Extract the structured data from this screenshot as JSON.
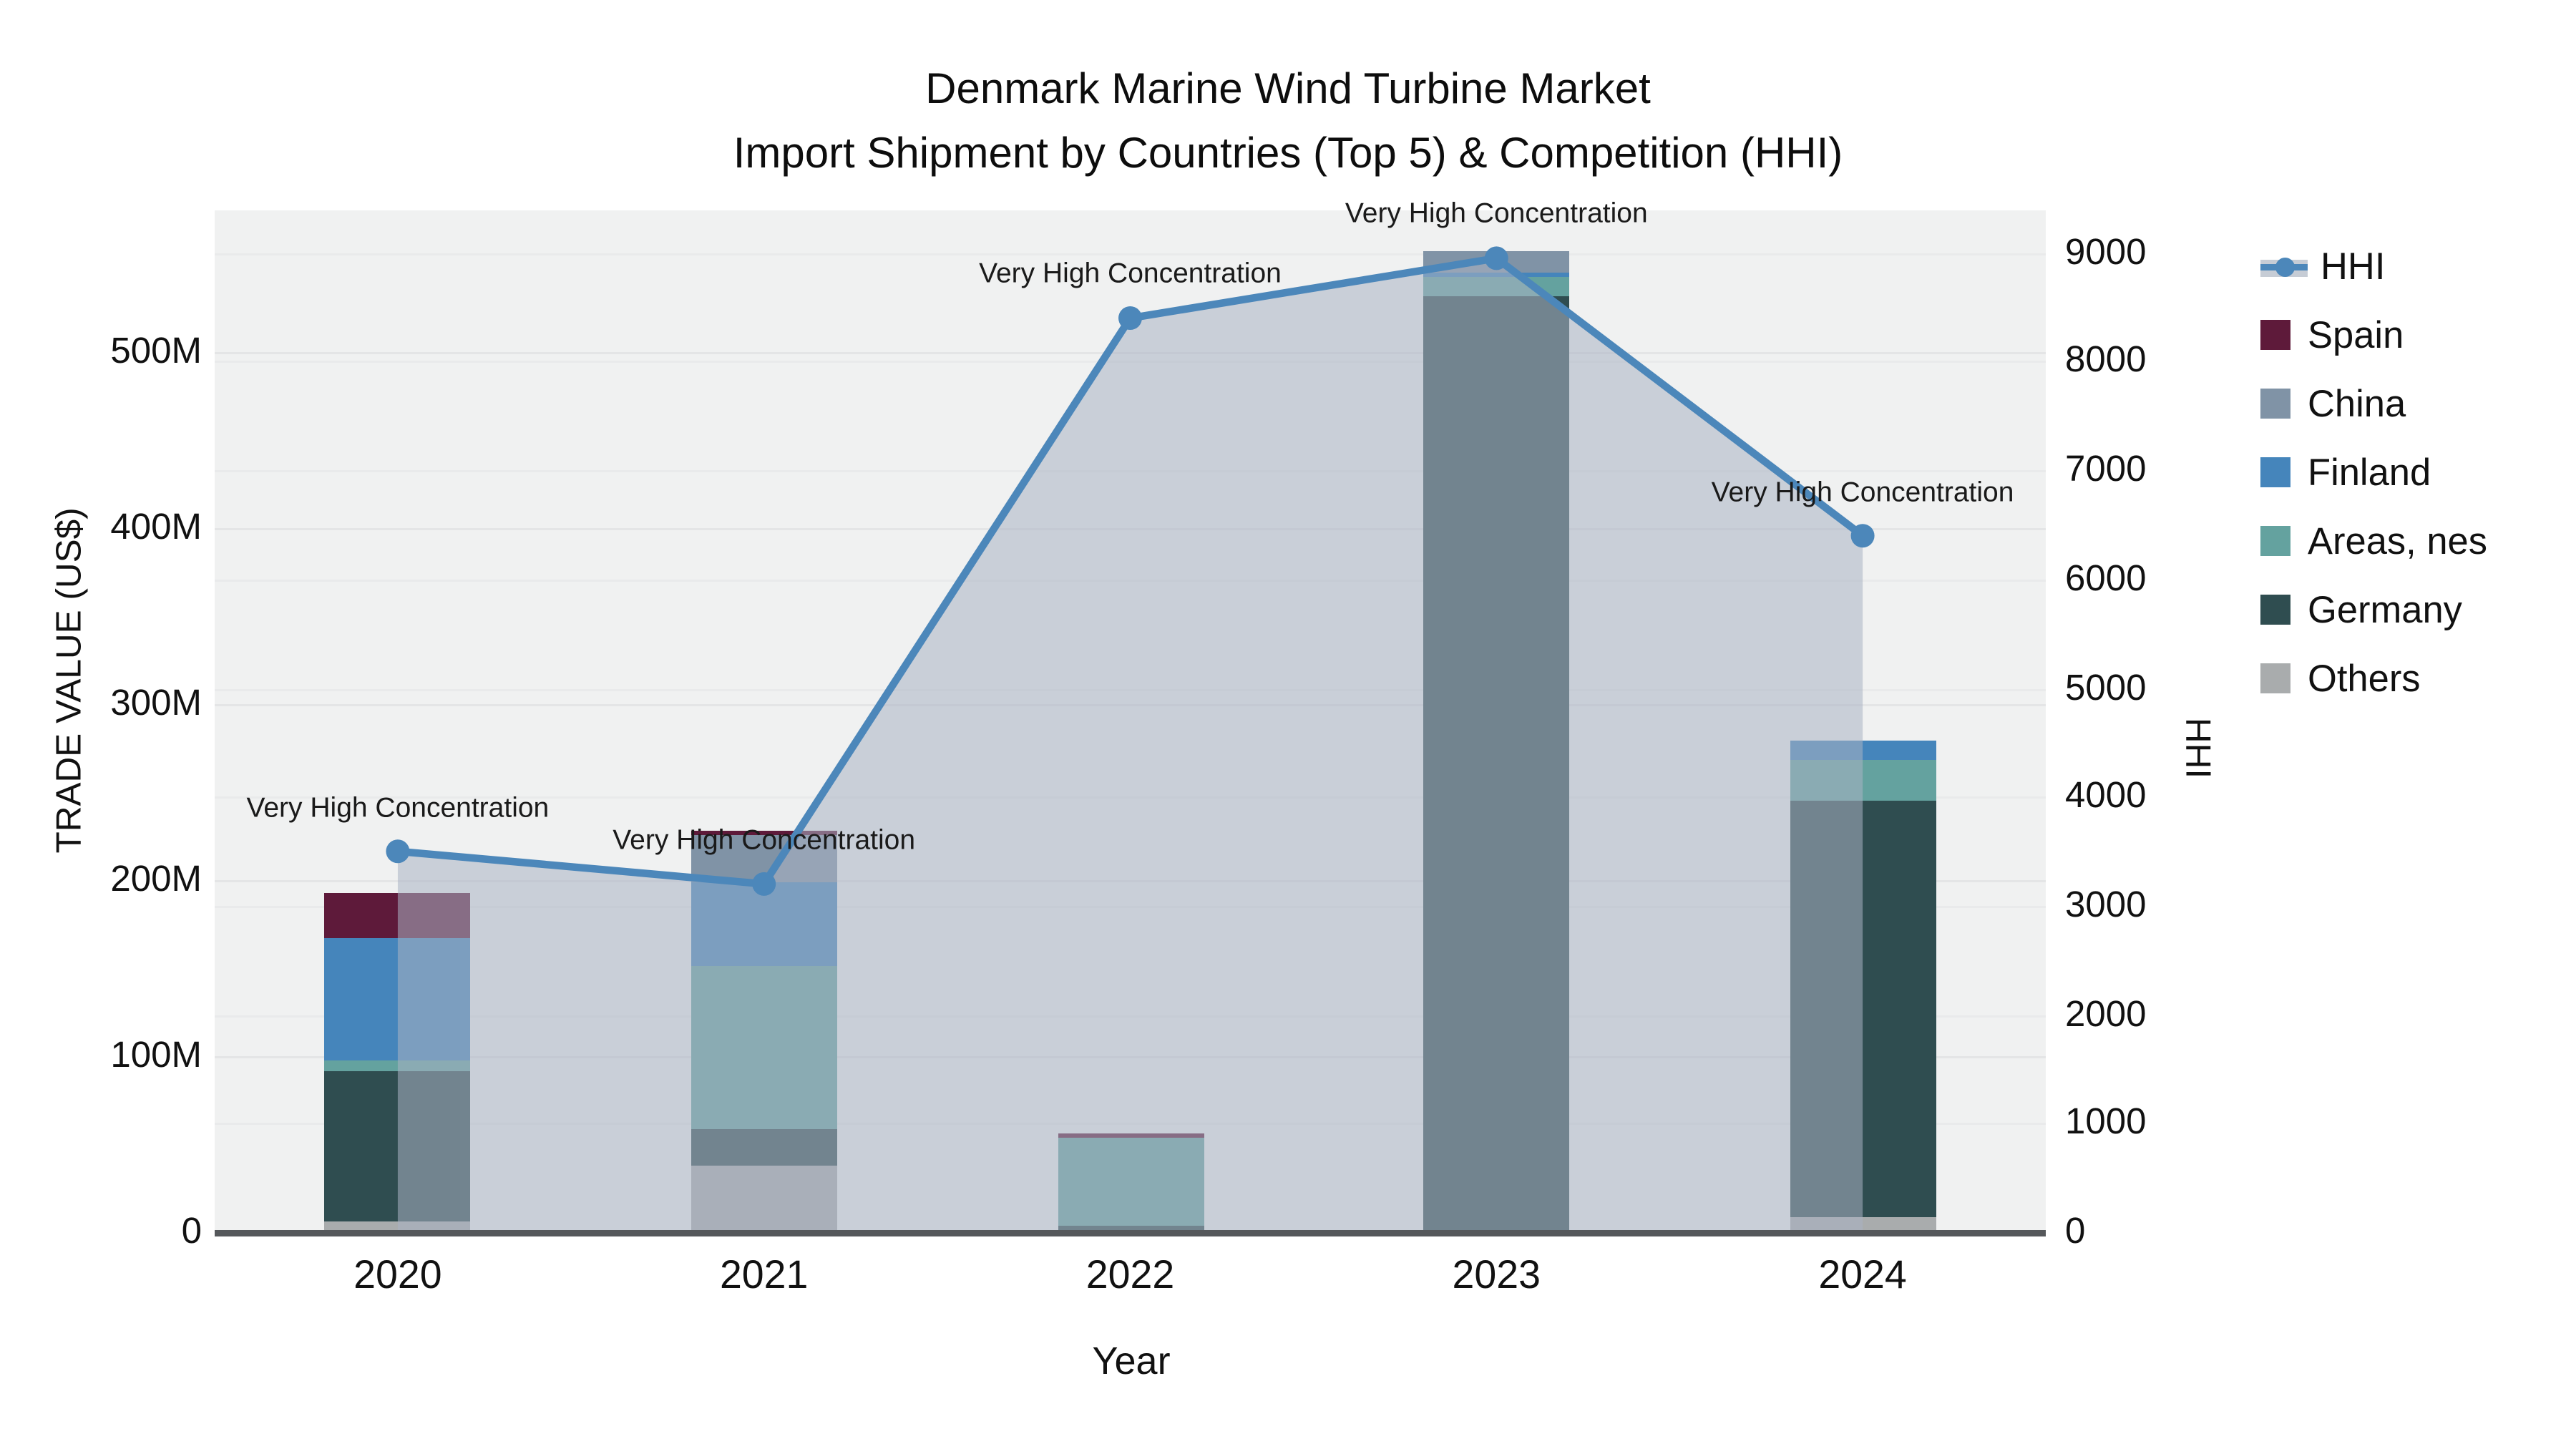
{
  "title": {
    "line1": "Denmark Marine Wind Turbine Market",
    "line2": "Import Shipment by Countries (Top 5) & Competition (HHI)"
  },
  "axes": {
    "left": {
      "label": "TRADE VALUE (US$)",
      "ticks": [
        "0",
        "100M",
        "200M",
        "300M",
        "400M",
        "500M"
      ]
    },
    "right": {
      "label": "HHI",
      "ticks": [
        "0",
        "1000",
        "2000",
        "3000",
        "4000",
        "5000",
        "6000",
        "7000",
        "8000",
        "9000"
      ]
    },
    "x": {
      "label": "Year"
    }
  },
  "legend": {
    "hhi_label": "HHI",
    "items": [
      "Spain",
      "China",
      "Finland",
      "Areas, nes",
      "Germany",
      "Others"
    ]
  },
  "chart_data": {
    "type": "bar+line",
    "categories": [
      "2020",
      "2021",
      "2022",
      "2023",
      "2024"
    ],
    "bar_unit": "million US$",
    "series": [
      {
        "name": "Spain",
        "color": "#5e1a3a",
        "values": [
          26,
          3,
          2,
          0,
          0
        ]
      },
      {
        "name": "China",
        "color": "#8093a6",
        "values": [
          0,
          26,
          0,
          12,
          0
        ]
      },
      {
        "name": "Finland",
        "color": "#4585bb",
        "values": [
          70,
          48,
          0,
          3,
          11
        ]
      },
      {
        "name": "Areas, nes",
        "color": "#64a29f",
        "values": [
          6,
          93,
          50,
          11,
          23
        ]
      },
      {
        "name": "Germany",
        "color": "#2f4d50",
        "values": [
          85,
          20,
          3,
          530,
          237
        ]
      },
      {
        "name": "Others",
        "color": "#a9acad",
        "values": [
          6,
          38,
          1,
          1,
          8
        ]
      }
    ],
    "stack_order_bottom_to_top": [
      "Others",
      "Germany",
      "Areas, nes",
      "Finland",
      "China",
      "Spain"
    ],
    "bar_totals": [
      193,
      228,
      56,
      557,
      279
    ],
    "line": {
      "name": "HHI",
      "axis": "right",
      "color": "#4c87ba",
      "fill": "rgba(169,179,195,0.55)",
      "values": [
        3500,
        3200,
        8400,
        8950,
        6400
      ]
    },
    "annotations": [
      "Very High Concentration",
      "Very High Concentration",
      "Very High Concentration",
      "Very High Concentration",
      "Very High Concentration"
    ],
    "title": "Denmark Marine Wind Turbine Market — Import Shipment by Countries (Top 5) & Competition (HHI)",
    "xlabel": "Year",
    "ylabel_left": "TRADE VALUE (US$)",
    "ylabel_right": "HHI",
    "ylim_left_musd": [
      0,
      580
    ],
    "ylim_right_hhi": [
      0,
      9390
    ],
    "left_tick_values_musd": [
      0,
      100,
      200,
      300,
      400,
      500
    ],
    "right_tick_values": [
      0,
      1000,
      2000,
      3000,
      4000,
      5000,
      6000,
      7000,
      8000,
      9000
    ],
    "grid": true,
    "legend_position": "right"
  },
  "colors": {
    "plot_bg": "#f0f1f1",
    "grid": "#e4e5e6",
    "axis_line": "#55585b",
    "annotation_text": "#1a1a1a",
    "title_text": "#0d0d0d"
  }
}
